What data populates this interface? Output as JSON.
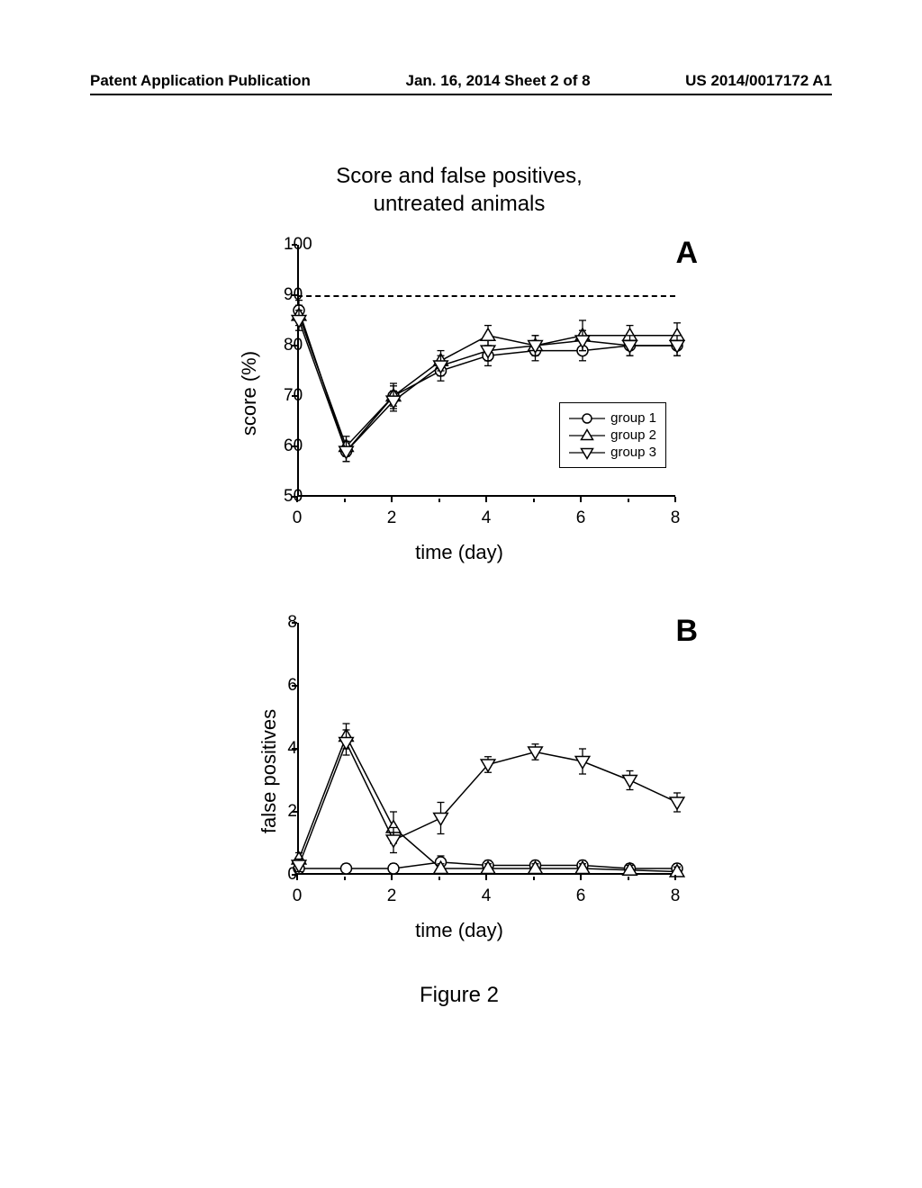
{
  "header": {
    "left": "Patent Application Publication",
    "center": "Jan. 16, 2014  Sheet 2 of 8",
    "right": "US 2014/0017172 A1"
  },
  "figure": {
    "title_line1": "Score and false positives,",
    "title_line2": "untreated animals",
    "caption": "Figure 2",
    "panelA": {
      "letter": "A",
      "ylabel": "score (%)",
      "xlabel": "time (day)",
      "ylim": [
        50,
        100
      ],
      "yticks": [
        50,
        60,
        70,
        80,
        90,
        100
      ],
      "xlim": [
        0,
        8
      ],
      "xticks": [
        0,
        2,
        4,
        6,
        8
      ],
      "dashed_y": 90,
      "legend": {
        "items": [
          "group 1",
          "group 2",
          "group 3"
        ]
      },
      "series": {
        "group1": {
          "marker": "circle",
          "x": [
            0,
            1,
            2,
            3,
            4,
            5,
            6,
            7,
            8
          ],
          "y": [
            87,
            59,
            70,
            75,
            78,
            79,
            79,
            80,
            80
          ],
          "err": [
            2,
            2,
            2,
            2,
            2,
            2,
            2,
            2,
            2
          ]
        },
        "group2": {
          "marker": "triangle-up",
          "x": [
            0,
            1,
            2,
            3,
            4,
            5,
            6,
            7,
            8
          ],
          "y": [
            86,
            60,
            70,
            77,
            82,
            80,
            82,
            82,
            82
          ],
          "err": [
            2,
            2,
            2.5,
            2,
            2,
            2,
            3,
            2,
            2.5
          ]
        },
        "group3": {
          "marker": "triangle-down",
          "x": [
            0,
            1,
            2,
            3,
            4,
            5,
            6,
            7,
            8
          ],
          "y": [
            85,
            59,
            69,
            76,
            79,
            80,
            81,
            80,
            80
          ],
          "err": [
            2,
            2,
            2,
            2,
            2,
            2,
            2,
            2,
            2
          ]
        }
      }
    },
    "panelB": {
      "letter": "B",
      "ylabel": "false positives",
      "xlabel": "time (day)",
      "ylim": [
        0,
        8
      ],
      "yticks": [
        0,
        2,
        4,
        6,
        8
      ],
      "xlim": [
        0,
        8
      ],
      "xticks": [
        0,
        2,
        4,
        6,
        8
      ],
      "series": {
        "group1": {
          "marker": "circle",
          "x": [
            0,
            1,
            2,
            3,
            4,
            5,
            6,
            7,
            8
          ],
          "y": [
            0.2,
            0.2,
            0.2,
            0.4,
            0.3,
            0.3,
            0.3,
            0.2,
            0.2
          ],
          "err": [
            0.15,
            0.15,
            0.15,
            0.2,
            0.15,
            0.15,
            0.15,
            0.15,
            0.15
          ]
        },
        "group2": {
          "marker": "triangle-up",
          "x": [
            0,
            1,
            2,
            3,
            4,
            5,
            6,
            7,
            8
          ],
          "y": [
            0.5,
            4.4,
            1.5,
            0.2,
            0.2,
            0.2,
            0.2,
            0.15,
            0.1
          ],
          "err": [
            0.2,
            0.4,
            0.5,
            0.15,
            0.15,
            0.15,
            0.15,
            0.15,
            0.15
          ]
        },
        "group3": {
          "marker": "triangle-down",
          "x": [
            0,
            1,
            2,
            3,
            4,
            5,
            6,
            7,
            8
          ],
          "y": [
            0.3,
            4.2,
            1.1,
            1.8,
            3.5,
            3.9,
            3.6,
            3.0,
            2.3
          ],
          "err": [
            0.2,
            0.4,
            0.4,
            0.5,
            0.25,
            0.25,
            0.4,
            0.3,
            0.3
          ]
        }
      }
    }
  },
  "colors": {
    "line": "#000000",
    "marker_fill": "#ffffff",
    "background": "#ffffff"
  },
  "style": {
    "marker_size": 6,
    "line_width": 1.5,
    "err_cap": 4
  }
}
